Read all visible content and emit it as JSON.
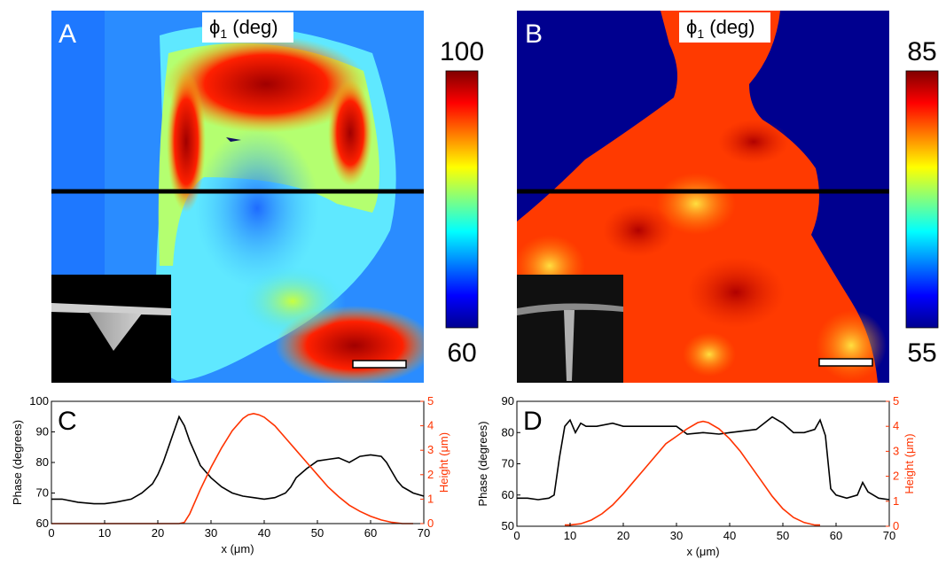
{
  "panels": {
    "A": {
      "label": "A",
      "title_symbol": "ϕ",
      "title_sub": "1",
      "title_unit": " (deg)",
      "cbar_max": "100",
      "cbar_min": "60"
    },
    "B": {
      "label": "B",
      "title_symbol": "ϕ",
      "title_sub": "1",
      "title_unit": " (deg)",
      "cbar_max": "85",
      "cbar_min": "55"
    }
  },
  "colors": {
    "phase_line": "#000000",
    "height_line": "#ff3300",
    "map_background_B": "#00008f"
  },
  "chart_data": [
    {
      "type": "line",
      "panel": "C",
      "xlabel": "x (μm)",
      "ylabel": "Phase (degrees)",
      "y2label": "Height (μm)",
      "xlim": [
        0,
        70
      ],
      "ylim": [
        60,
        100
      ],
      "y2lim": [
        0,
        5
      ],
      "xticks": [
        0,
        10,
        20,
        30,
        40,
        50,
        60,
        70
      ],
      "yticks": [
        60,
        70,
        80,
        90,
        100
      ],
      "y2ticks": [
        0,
        1,
        2,
        3,
        4,
        5
      ],
      "series": [
        {
          "axis": "left",
          "color": "#000000",
          "x": [
            0,
            2,
            5,
            8,
            10,
            12,
            15,
            17,
            19,
            20,
            21,
            22,
            23,
            24,
            25,
            26,
            27,
            28,
            30,
            32,
            34,
            36,
            38,
            40,
            42,
            44,
            45,
            46,
            48,
            50,
            52,
            54,
            56,
            58,
            60,
            62,
            63,
            64,
            65,
            66,
            67,
            68,
            70
          ],
          "values": [
            68,
            68,
            67,
            66.5,
            66.5,
            67,
            68,
            70,
            73,
            76,
            80,
            85,
            90,
            95,
            92,
            87,
            83,
            79,
            75,
            72,
            70,
            69,
            68.5,
            68,
            68.5,
            70,
            72,
            75,
            78,
            80.5,
            81,
            81.5,
            80,
            82,
            82.5,
            82,
            80,
            77,
            74,
            72,
            71,
            70,
            69
          ]
        },
        {
          "axis": "right",
          "color": "#ff3300",
          "x": [
            0,
            10,
            20,
            22,
            24,
            25,
            26,
            27,
            28,
            30,
            32,
            34,
            36,
            37,
            38,
            39,
            40,
            42,
            44,
            46,
            48,
            50,
            52,
            54,
            56,
            58,
            60,
            62,
            64,
            66,
            68
          ],
          "values": [
            0,
            0,
            0,
            0,
            0,
            0.05,
            0.4,
            0.9,
            1.4,
            2.3,
            3.1,
            3.8,
            4.3,
            4.45,
            4.5,
            4.45,
            4.35,
            4.0,
            3.5,
            3.0,
            2.5,
            2.0,
            1.5,
            1.1,
            0.75,
            0.5,
            0.3,
            0.15,
            0.05,
            0,
            0
          ]
        }
      ]
    },
    {
      "type": "line",
      "panel": "D",
      "xlabel": "x (μm)",
      "ylabel": "Phase (degrees)",
      "y2label": "Height (μm)",
      "xlim": [
        0,
        70
      ],
      "ylim": [
        50,
        90
      ],
      "y2lim": [
        0,
        5
      ],
      "xticks": [
        0,
        10,
        20,
        30,
        40,
        50,
        60,
        70
      ],
      "yticks": [
        50,
        60,
        70,
        80,
        90
      ],
      "y2ticks": [
        0,
        1,
        2,
        3,
        4,
        5
      ],
      "series": [
        {
          "axis": "left",
          "color": "#000000",
          "x": [
            0,
            2,
            4,
            6,
            7,
            8,
            9,
            10,
            11,
            12,
            13,
            15,
            18,
            20,
            25,
            30,
            32,
            35,
            38,
            40,
            45,
            48,
            50,
            52,
            54,
            56,
            57,
            58,
            59,
            60,
            62,
            64,
            65,
            66,
            68,
            70
          ],
          "values": [
            59,
            59,
            58.5,
            59,
            60,
            72,
            82,
            84,
            80,
            83,
            82,
            82,
            83,
            82,
            82,
            82,
            79.5,
            80,
            79.5,
            80,
            81,
            85,
            83,
            80,
            80,
            81,
            84,
            79,
            62,
            60,
            59,
            60,
            64,
            61,
            59,
            58.5
          ]
        },
        {
          "axis": "right",
          "color": "#ff3300",
          "x": [
            9,
            10,
            12,
            14,
            16,
            18,
            20,
            22,
            24,
            26,
            28,
            30,
            32,
            34,
            35,
            36,
            38,
            40,
            42,
            44,
            46,
            48,
            50,
            52,
            54,
            56,
            57
          ],
          "values": [
            0.05,
            0.05,
            0.1,
            0.25,
            0.5,
            0.85,
            1.3,
            1.8,
            2.3,
            2.8,
            3.3,
            3.6,
            3.9,
            4.15,
            4.2,
            4.15,
            3.9,
            3.5,
            3.0,
            2.4,
            1.8,
            1.2,
            0.7,
            0.35,
            0.15,
            0.05,
            0.05
          ]
        }
      ]
    }
  ]
}
